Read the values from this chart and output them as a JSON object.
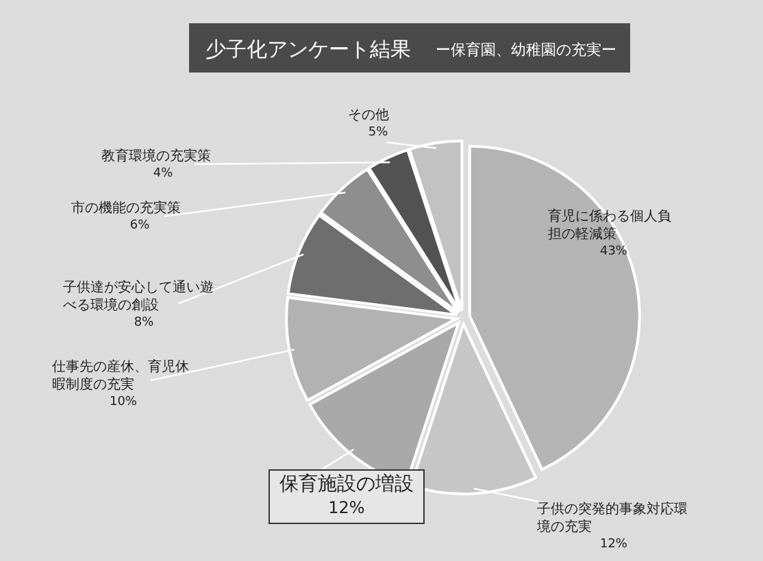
{
  "chart_data": {
    "type": "pie",
    "title": "少子化アンケート結果",
    "subtitle": "ー保育園、幼稚園の充実ー",
    "categories": [
      "育児に係わる個人負担の軽減策",
      "子供の突発的事象対応環境の充実",
      "保育施設の増設",
      "仕事先の産休、育児休暇制度の充実",
      "子供達が安心して通い遊べる環境の創設",
      "市の機能の充実策",
      "教育環境の充実策",
      "その他"
    ],
    "values": [
      43,
      12,
      12,
      10,
      8,
      6,
      4,
      5
    ],
    "value_labels": [
      "43%",
      "12%",
      "12%",
      "10%",
      "8%",
      "6%",
      "4%",
      "5%"
    ],
    "colors": [
      "#b4b4b4",
      "#c6c6c6",
      "#a9a9a9",
      "#b2b2b2",
      "#6e6e6e",
      "#8e8e8e",
      "#525252",
      "#c2c2c2"
    ],
    "legend": false
  }
}
